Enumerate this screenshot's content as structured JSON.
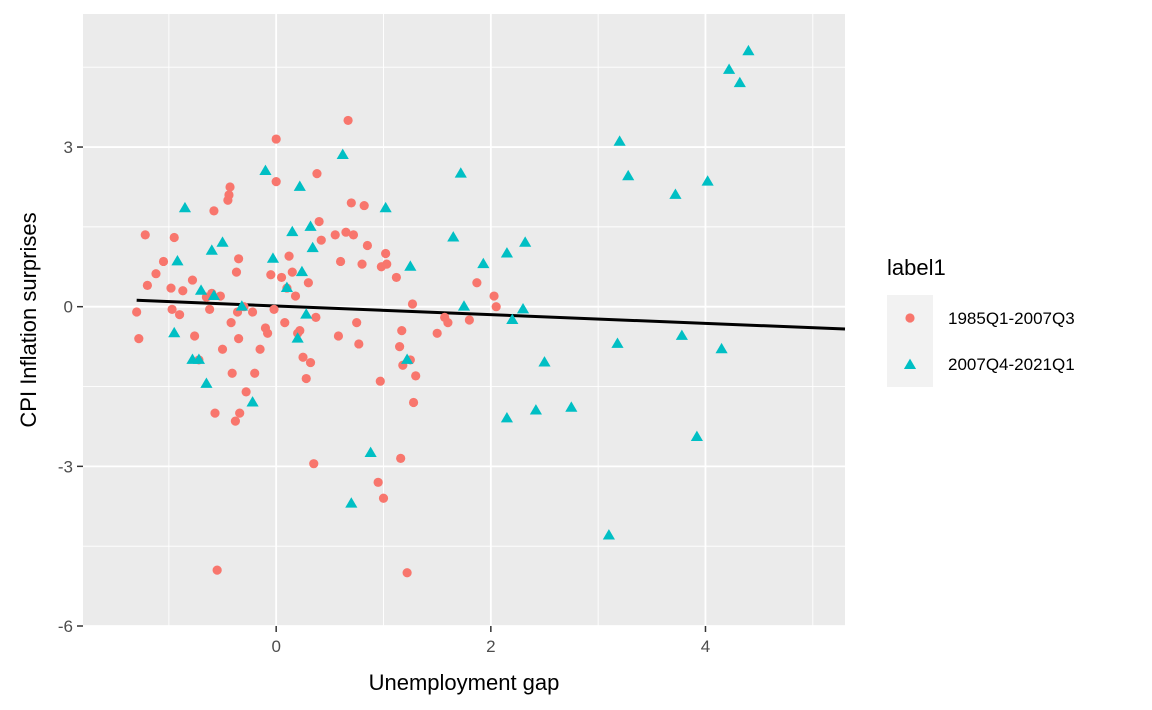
{
  "chart_data": {
    "type": "scatter",
    "title": "",
    "xlabel": "Unemployment gap",
    "ylabel": "CPI Inflation surprises",
    "xlim": [
      -1.8,
      5.3
    ],
    "ylim": [
      -6.0,
      5.5
    ],
    "x_ticks": [
      0,
      2,
      4
    ],
    "x_tick_labels": [
      "0",
      "2",
      "4"
    ],
    "y_ticks": [
      -6,
      -3,
      0,
      3
    ],
    "y_tick_labels": [
      "-6",
      "-3",
      "0",
      "3"
    ],
    "grid": true,
    "legend": {
      "title": "label1",
      "position": "right"
    },
    "series": [
      {
        "name": "1985Q1-2007Q3",
        "color": "#F8766D",
        "shape": "circle",
        "points": [
          [
            -1.3,
            -0.1
          ],
          [
            -1.28,
            -0.6
          ],
          [
            -1.22,
            1.35
          ],
          [
            -1.2,
            0.4
          ],
          [
            -1.12,
            0.62
          ],
          [
            -1.05,
            0.85
          ],
          [
            -0.98,
            0.35
          ],
          [
            -0.97,
            -0.05
          ],
          [
            -0.95,
            1.3
          ],
          [
            -0.9,
            -0.15
          ],
          [
            -0.87,
            0.3
          ],
          [
            -0.78,
            0.5
          ],
          [
            -0.76,
            -0.55
          ],
          [
            -0.72,
            -1.0
          ],
          [
            -0.65,
            0.18
          ],
          [
            -0.62,
            -0.05
          ],
          [
            -0.6,
            0.25
          ],
          [
            -0.58,
            1.8
          ],
          [
            -0.57,
            -2.0
          ],
          [
            -0.55,
            -4.95
          ],
          [
            -0.52,
            0.2
          ],
          [
            -0.5,
            -0.8
          ],
          [
            -0.45,
            2.0
          ],
          [
            -0.44,
            2.1
          ],
          [
            -0.43,
            2.25
          ],
          [
            -0.42,
            -0.3
          ],
          [
            -0.41,
            -1.25
          ],
          [
            -0.38,
            -2.15
          ],
          [
            -0.37,
            0.65
          ],
          [
            -0.36,
            -0.1
          ],
          [
            -0.35,
            -0.6
          ],
          [
            -0.35,
            0.9
          ],
          [
            -0.34,
            -2.0
          ],
          [
            -0.3,
            0.0
          ],
          [
            -0.28,
            -1.6
          ],
          [
            -0.22,
            -0.1
          ],
          [
            -0.2,
            -1.25
          ],
          [
            -0.15,
            -0.8
          ],
          [
            -0.1,
            -0.4
          ],
          [
            -0.08,
            -0.5
          ],
          [
            -0.05,
            0.6
          ],
          [
            -0.02,
            -0.05
          ],
          [
            0.0,
            3.15
          ],
          [
            0.0,
            2.35
          ],
          [
            0.05,
            0.55
          ],
          [
            0.08,
            -0.3
          ],
          [
            0.1,
            0.35
          ],
          [
            0.12,
            0.95
          ],
          [
            0.15,
            0.65
          ],
          [
            0.18,
            0.2
          ],
          [
            0.2,
            -0.5
          ],
          [
            0.22,
            -0.45
          ],
          [
            0.25,
            -0.95
          ],
          [
            0.28,
            -1.35
          ],
          [
            0.3,
            0.45
          ],
          [
            0.32,
            -1.05
          ],
          [
            0.35,
            -2.95
          ],
          [
            0.37,
            -0.2
          ],
          [
            0.38,
            2.5
          ],
          [
            0.4,
            1.6
          ],
          [
            0.42,
            1.25
          ],
          [
            0.55,
            1.35
          ],
          [
            0.58,
            -0.55
          ],
          [
            0.6,
            0.85
          ],
          [
            0.65,
            1.4
          ],
          [
            0.67,
            3.5
          ],
          [
            0.7,
            1.95
          ],
          [
            0.72,
            1.35
          ],
          [
            0.75,
            -0.3
          ],
          [
            0.77,
            -0.7
          ],
          [
            0.8,
            0.8
          ],
          [
            0.82,
            1.9
          ],
          [
            0.85,
            1.15
          ],
          [
            0.95,
            -3.3
          ],
          [
            0.97,
            -1.4
          ],
          [
            0.98,
            0.75
          ],
          [
            1.0,
            -3.6
          ],
          [
            1.02,
            1.0
          ],
          [
            1.03,
            0.8
          ],
          [
            1.12,
            0.55
          ],
          [
            1.15,
            -0.75
          ],
          [
            1.16,
            -2.85
          ],
          [
            1.17,
            -0.45
          ],
          [
            1.18,
            -1.1
          ],
          [
            1.22,
            -5.0
          ],
          [
            1.25,
            -1.0
          ],
          [
            1.27,
            0.05
          ],
          [
            1.28,
            -1.8
          ],
          [
            1.3,
            -1.3
          ],
          [
            1.5,
            -0.5
          ],
          [
            1.57,
            -0.2
          ],
          [
            1.6,
            -0.3
          ],
          [
            1.8,
            -0.25
          ],
          [
            1.87,
            0.45
          ],
          [
            2.03,
            0.2
          ],
          [
            2.05,
            0.0
          ]
        ]
      },
      {
        "name": "2007Q4-2021Q1",
        "color": "#00BFC4",
        "shape": "triangle",
        "points": [
          [
            -0.95,
            -0.5
          ],
          [
            -0.92,
            0.85
          ],
          [
            -0.85,
            1.85
          ],
          [
            -0.78,
            -1.0
          ],
          [
            -0.72,
            -1.0
          ],
          [
            -0.7,
            0.3
          ],
          [
            -0.65,
            -1.45
          ],
          [
            -0.6,
            1.05
          ],
          [
            -0.58,
            0.2
          ],
          [
            -0.5,
            1.2
          ],
          [
            -0.32,
            0.0
          ],
          [
            -0.22,
            -1.8
          ],
          [
            -0.1,
            2.55
          ],
          [
            -0.03,
            0.9
          ],
          [
            0.1,
            0.35
          ],
          [
            0.15,
            1.4
          ],
          [
            0.2,
            -0.6
          ],
          [
            0.22,
            2.25
          ],
          [
            0.24,
            0.65
          ],
          [
            0.28,
            -0.15
          ],
          [
            0.32,
            1.5
          ],
          [
            0.34,
            1.1
          ],
          [
            0.62,
            2.85
          ],
          [
            0.7,
            -3.7
          ],
          [
            0.88,
            -2.75
          ],
          [
            1.02,
            1.85
          ],
          [
            1.22,
            -1.0
          ],
          [
            1.25,
            0.75
          ],
          [
            1.65,
            1.3
          ],
          [
            1.72,
            2.5
          ],
          [
            1.75,
            0.0
          ],
          [
            1.93,
            0.8
          ],
          [
            2.15,
            1.0
          ],
          [
            2.15,
            -2.1
          ],
          [
            2.2,
            -0.25
          ],
          [
            2.3,
            -0.05
          ],
          [
            2.32,
            1.2
          ],
          [
            2.42,
            -1.95
          ],
          [
            2.5,
            -1.05
          ],
          [
            2.75,
            -1.9
          ],
          [
            3.1,
            -4.3
          ],
          [
            3.18,
            -0.7
          ],
          [
            3.2,
            3.1
          ],
          [
            3.28,
            2.45
          ],
          [
            3.72,
            2.1
          ],
          [
            3.78,
            -0.55
          ],
          [
            3.92,
            -2.45
          ],
          [
            4.02,
            2.35
          ],
          [
            4.15,
            -0.8
          ],
          [
            4.22,
            4.45
          ],
          [
            4.32,
            4.2
          ],
          [
            4.4,
            4.8
          ]
        ]
      }
    ],
    "trend_line": {
      "type": "linear",
      "x": [
        -1.3,
        5.3
      ],
      "y": [
        0.12,
        -0.42
      ],
      "color": "#000000"
    }
  }
}
